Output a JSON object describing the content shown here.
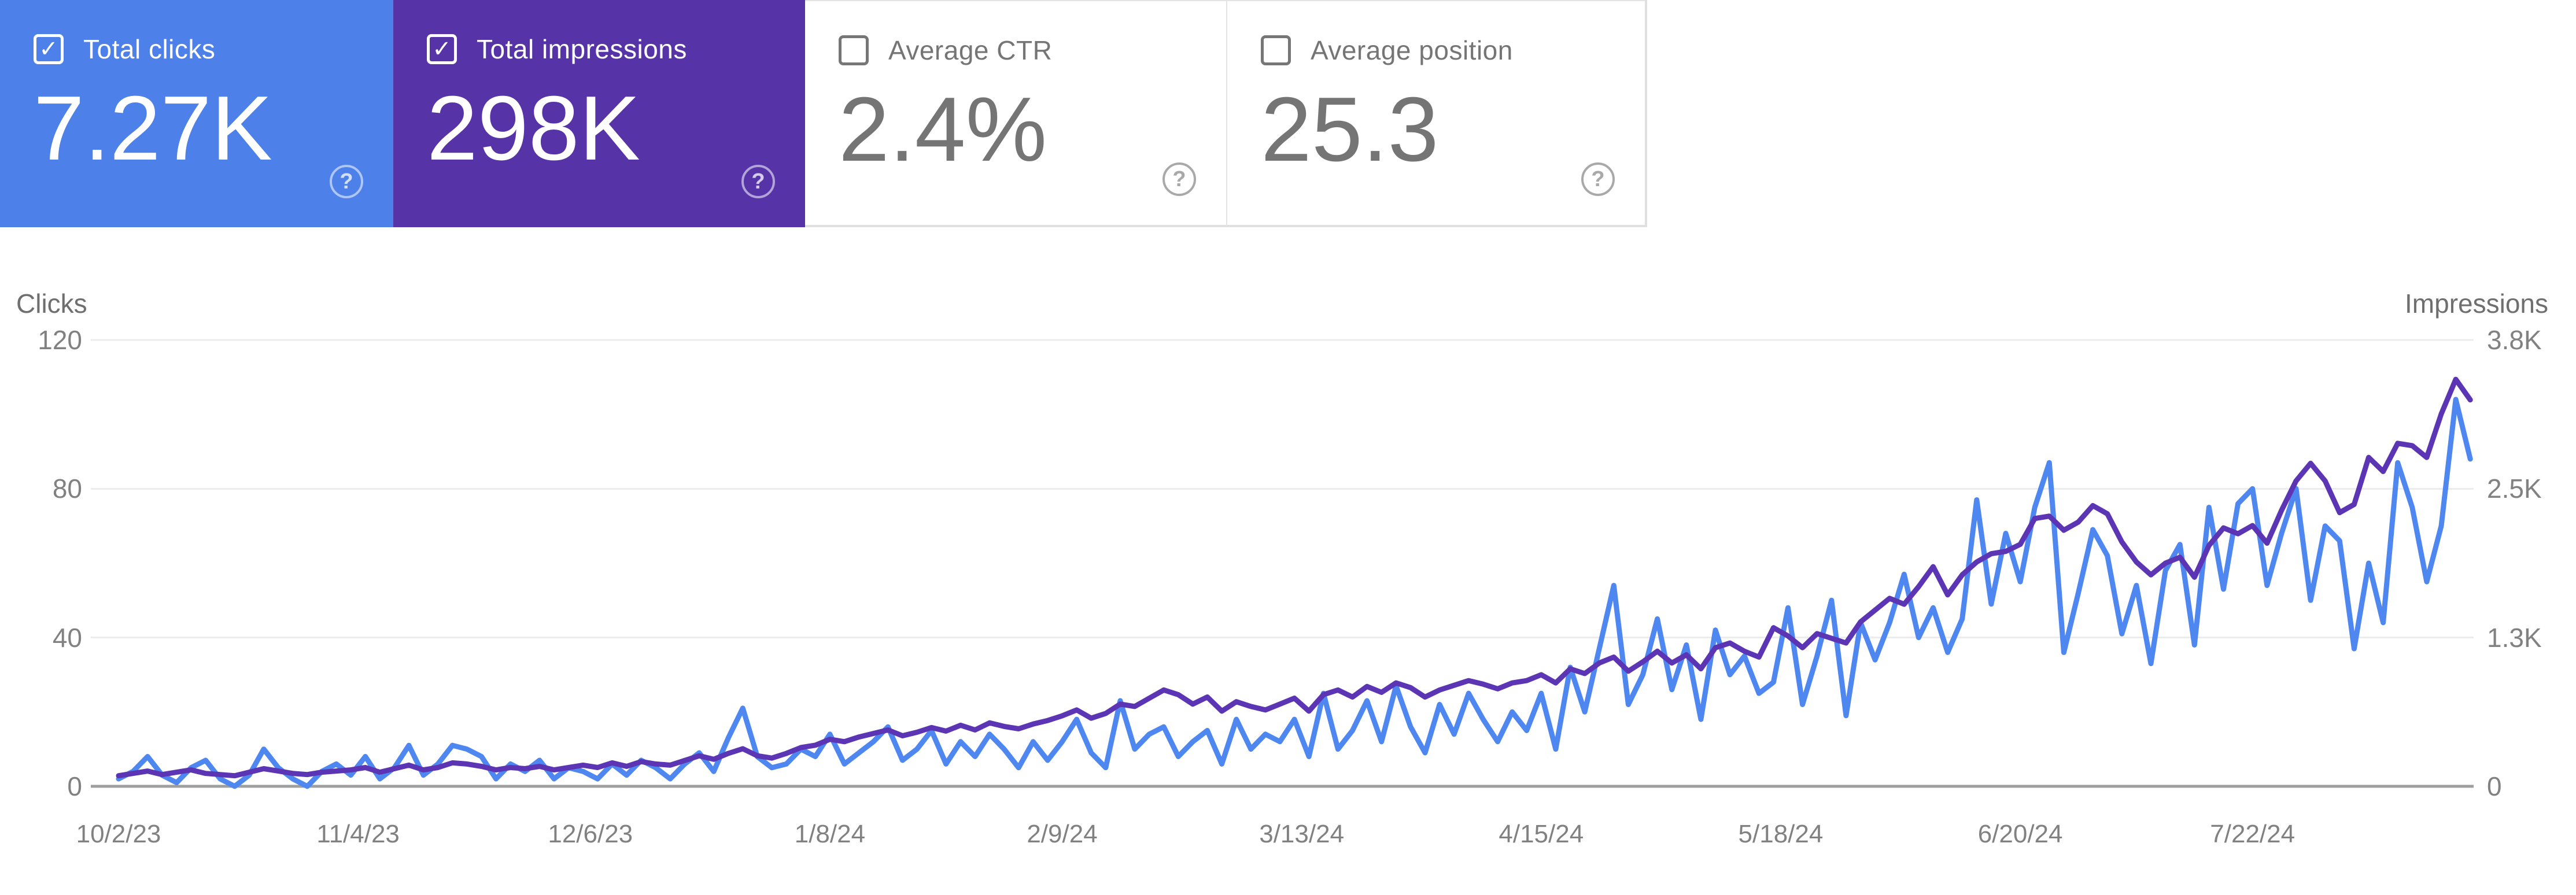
{
  "icons": {
    "check": "✓",
    "help": "?"
  },
  "cards": [
    {
      "label": "Total clicks",
      "value": "7.27K",
      "checked": true,
      "bg": "#4d80e8",
      "text": "#ffffff"
    },
    {
      "label": "Total impressions",
      "value": "298K",
      "checked": true,
      "bg": "#5634a8",
      "text": "#ffffff"
    },
    {
      "label": "Average CTR",
      "value": "2.4%",
      "checked": false,
      "bg": "#ffffff",
      "text": "#757575"
    },
    {
      "label": "Average position",
      "value": "25.3",
      "checked": false,
      "bg": "#ffffff",
      "text": "#757575"
    }
  ],
  "chart_data": {
    "type": "line",
    "x_axis": {
      "start_date": "10/2/23",
      "day_step": 2,
      "tick_labels": [
        "10/2/23",
        "11/4/23",
        "12/6/23",
        "1/8/24",
        "2/9/24",
        "3/13/24",
        "4/15/24",
        "5/18/24",
        "6/20/24",
        "7/22/24"
      ],
      "tick_days": [
        0,
        33,
        65,
        98,
        130,
        163,
        196,
        229,
        262,
        294
      ]
    },
    "y_left": {
      "label": "Clicks",
      "ticks": [
        0,
        40,
        80,
        120
      ],
      "tick_labels": [
        "0",
        "40",
        "80",
        "120"
      ],
      "max": 120
    },
    "y_right": {
      "label": "Impressions",
      "ticks": [
        0,
        1266.67,
        2533.33,
        3800
      ],
      "tick_labels": [
        "0",
        "1.3K",
        "2.5K",
        "3.8K"
      ],
      "max": 3800
    },
    "grid": {
      "line_color": "#ececec",
      "baseline_color": "#9e9e9e"
    },
    "series": [
      {
        "name": "Clicks",
        "axis": "left",
        "color": "#4f87f0",
        "values": [
          2,
          4,
          8,
          3,
          1,
          5,
          7,
          2,
          0,
          3,
          10,
          5,
          2,
          0,
          4,
          6,
          3,
          8,
          2,
          5,
          11,
          3,
          6,
          11,
          10,
          8,
          2,
          6,
          4,
          7,
          2,
          5,
          4,
          2,
          6,
          3,
          7,
          5,
          2,
          6,
          9,
          4,
          13,
          21,
          8,
          5,
          6,
          10,
          8,
          14,
          6,
          9,
          12,
          16,
          7,
          10,
          15,
          6,
          12,
          8,
          14,
          10,
          5,
          12,
          7,
          12,
          18,
          9,
          5,
          23,
          10,
          14,
          16,
          8,
          12,
          15,
          6,
          18,
          10,
          14,
          12,
          18,
          8,
          25,
          10,
          15,
          23,
          12,
          27,
          16,
          9,
          22,
          14,
          25,
          18,
          12,
          20,
          15,
          25,
          10,
          32,
          20,
          37,
          54,
          22,
          30,
          45,
          26,
          38,
          18,
          42,
          30,
          35,
          25,
          28,
          48,
          22,
          35,
          50,
          19,
          44,
          34,
          44,
          57,
          40,
          48,
          36,
          45,
          77,
          49,
          68,
          55,
          75,
          87,
          36,
          52,
          69,
          62,
          41,
          54,
          33,
          58,
          65,
          38,
          75,
          53,
          76,
          80,
          54,
          68,
          80,
          50,
          70,
          66,
          37,
          60,
          44,
          87,
          75,
          55,
          70,
          104,
          88
        ]
      },
      {
        "name": "Impressions",
        "axis": "right",
        "color": "#5b35b3",
        "values": [
          90,
          110,
          130,
          100,
          120,
          140,
          110,
          100,
          90,
          120,
          150,
          130,
          110,
          100,
          120,
          130,
          140,
          160,
          120,
          150,
          180,
          140,
          160,
          200,
          190,
          170,
          140,
          160,
          150,
          170,
          140,
          160,
          180,
          160,
          200,
          170,
          210,
          190,
          180,
          220,
          260,
          230,
          280,
          320,
          260,
          240,
          280,
          330,
          350,
          400,
          380,
          420,
          450,
          480,
          430,
          460,
          500,
          470,
          520,
          480,
          540,
          510,
          490,
          530,
          560,
          600,
          650,
          580,
          620,
          700,
          680,
          750,
          820,
          780,
          700,
          760,
          640,
          720,
          680,
          650,
          700,
          750,
          640,
          780,
          820,
          760,
          850,
          800,
          880,
          840,
          760,
          820,
          860,
          900,
          870,
          830,
          880,
          900,
          950,
          880,
          1000,
          960,
          1050,
          1100,
          980,
          1060,
          1150,
          1050,
          1120,
          1000,
          1180,
          1220,
          1150,
          1100,
          1350,
          1280,
          1180,
          1300,
          1260,
          1220,
          1400,
          1500,
          1600,
          1550,
          1700,
          1870,
          1630,
          1800,
          1910,
          1980,
          2000,
          2060,
          2280,
          2300,
          2180,
          2250,
          2390,
          2320,
          2080,
          1910,
          1800,
          1900,
          1950,
          1780,
          2050,
          2200,
          2150,
          2220,
          2070,
          2350,
          2600,
          2750,
          2600,
          2330,
          2400,
          2800,
          2680,
          2920,
          2900,
          2800,
          3170,
          3465,
          3290
        ]
      }
    ]
  }
}
